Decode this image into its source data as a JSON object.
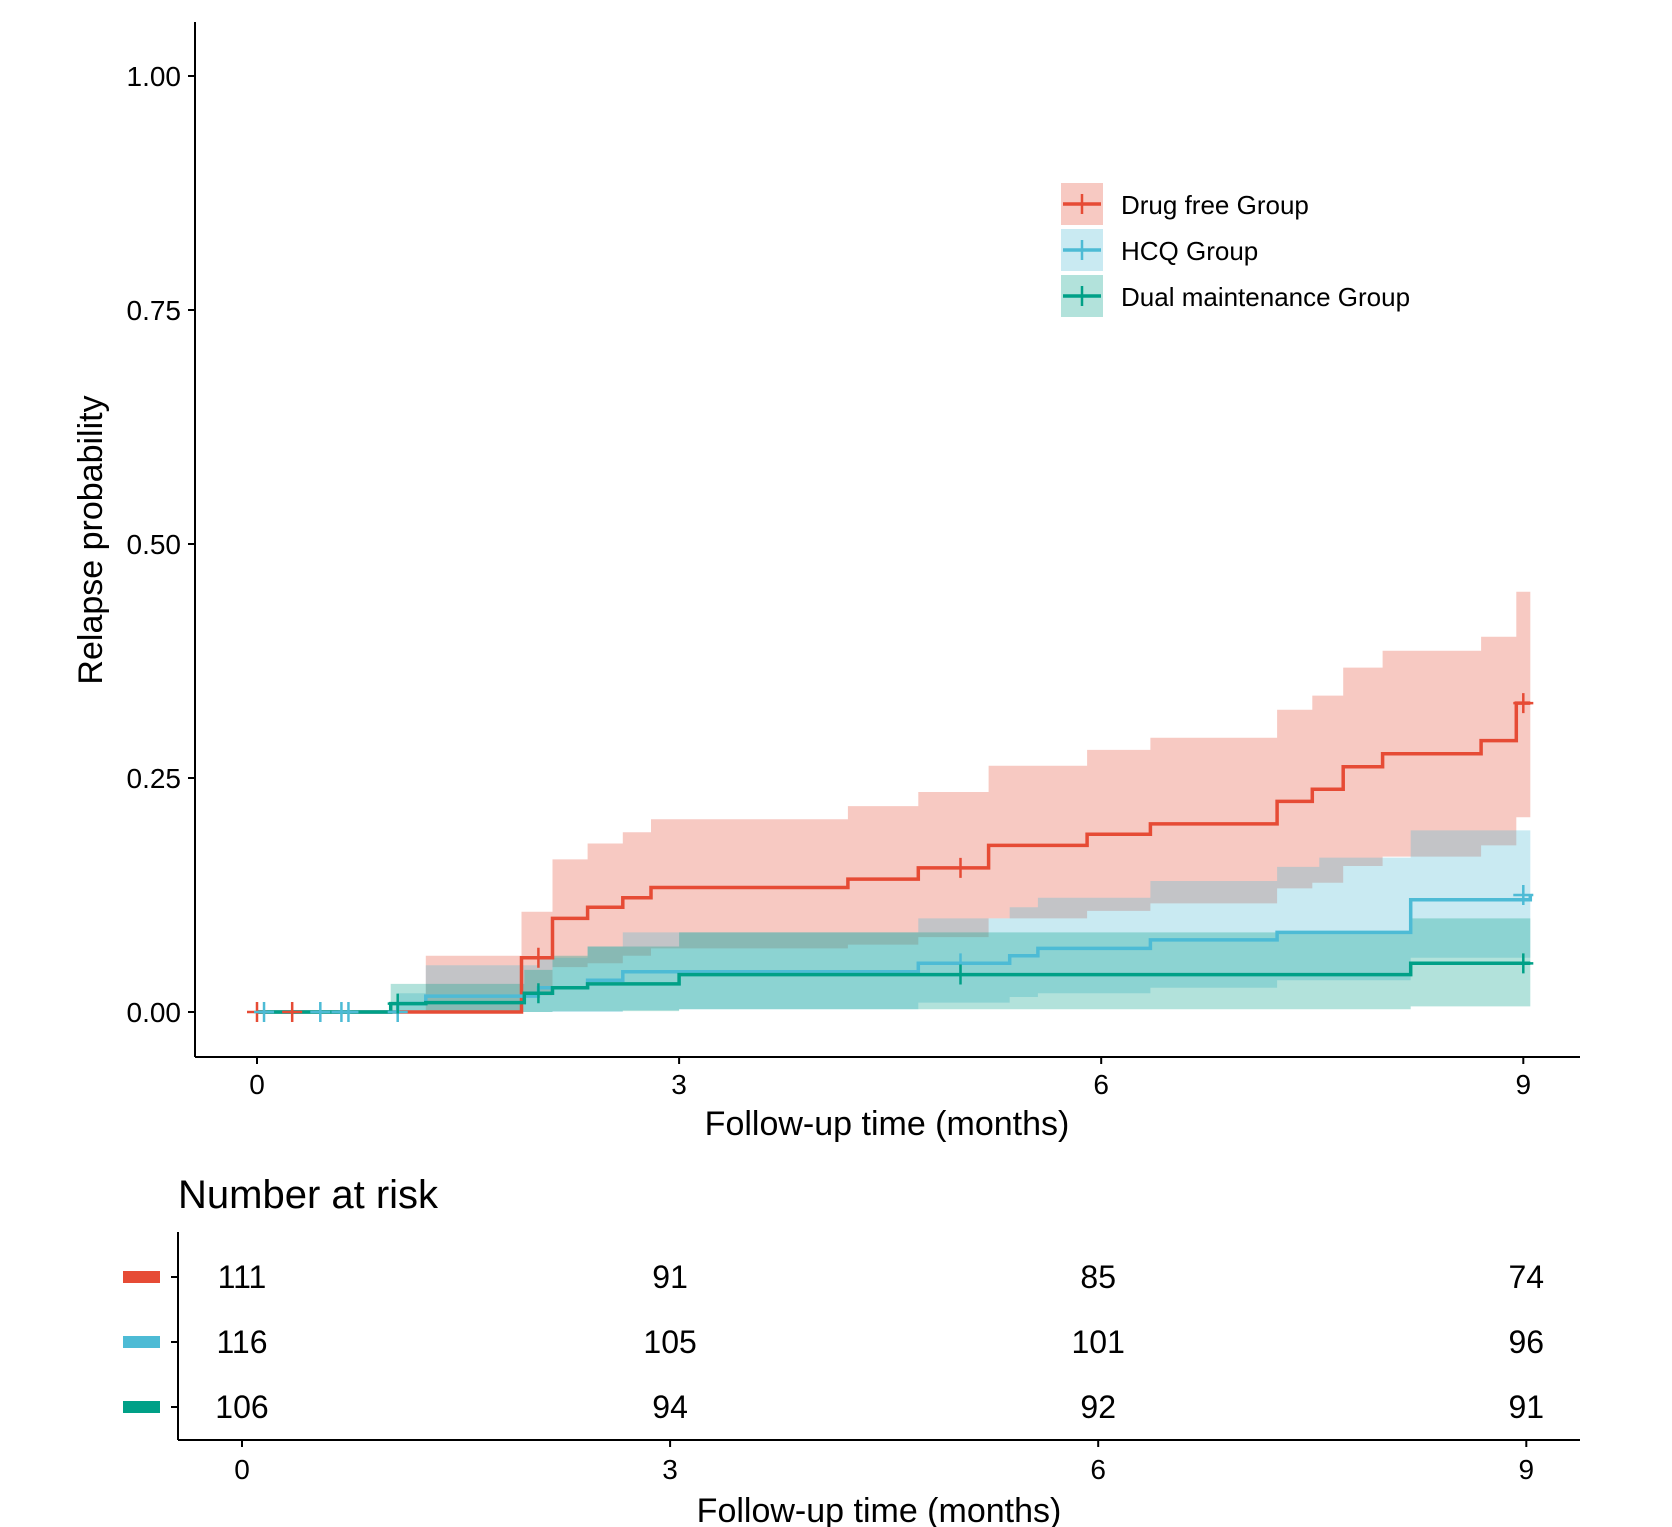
{
  "chart_data": {
    "type": "line",
    "subtype": "kaplan-meier cumulative incidence with 95% CI bands",
    "xlabel": "Follow-up time (months)",
    "ylabel": "Relapse probability",
    "xlim": [
      -0.45,
      9.45
    ],
    "ylim": [
      -0.05,
      1.05
    ],
    "x_ticks": [
      0,
      3,
      6,
      9
    ],
    "y_ticks": [
      0,
      0.25,
      0.5,
      0.75,
      1.0
    ],
    "y_tick_labels": [
      "0.00",
      "0.25",
      "0.50",
      "0.75",
      "1.00"
    ],
    "grid": false,
    "legend_position": "top-right",
    "series": [
      {
        "name": "Drug free Group",
        "color": "#E64B35",
        "steps": [
          [
            0,
            0
          ],
          [
            1.88,
            0.058
          ],
          [
            2.1,
            0.1
          ],
          [
            2.35,
            0.112
          ],
          [
            2.6,
            0.122
          ],
          [
            2.8,
            0.133
          ],
          [
            4.2,
            0.142
          ],
          [
            4.7,
            0.154
          ],
          [
            5.2,
            0.178
          ],
          [
            5.9,
            0.19
          ],
          [
            6.35,
            0.201
          ],
          [
            7.25,
            0.225
          ],
          [
            7.5,
            0.238
          ],
          [
            7.72,
            0.262
          ],
          [
            8.0,
            0.276
          ],
          [
            8.7,
            0.29
          ],
          [
            8.95,
            0.33
          ],
          [
            9.05,
            0.33
          ]
        ],
        "lower": [
          [
            0,
            0
          ],
          [
            1.2,
            0
          ],
          [
            1.88,
            0.018
          ],
          [
            2.1,
            0.048
          ],
          [
            2.35,
            0.052
          ],
          [
            2.6,
            0.06
          ],
          [
            2.8,
            0.068
          ],
          [
            4.2,
            0.072
          ],
          [
            4.7,
            0.08
          ],
          [
            5.2,
            0.1
          ],
          [
            5.9,
            0.108
          ],
          [
            6.35,
            0.116
          ],
          [
            7.25,
            0.132
          ],
          [
            7.5,
            0.138
          ],
          [
            7.72,
            0.156
          ],
          [
            8.0,
            0.166
          ],
          [
            8.7,
            0.178
          ],
          [
            8.95,
            0.208
          ],
          [
            9.05,
            0.208
          ]
        ],
        "upper": [
          [
            0,
            0
          ],
          [
            1.2,
            0.06
          ],
          [
            1.88,
            0.107
          ],
          [
            2.1,
            0.163
          ],
          [
            2.35,
            0.18
          ],
          [
            2.6,
            0.192
          ],
          [
            2.8,
            0.206
          ],
          [
            4.2,
            0.22
          ],
          [
            4.7,
            0.235
          ],
          [
            5.2,
            0.263
          ],
          [
            5.9,
            0.28
          ],
          [
            6.35,
            0.293
          ],
          [
            7.25,
            0.323
          ],
          [
            7.5,
            0.338
          ],
          [
            7.72,
            0.368
          ],
          [
            8.0,
            0.386
          ],
          [
            8.7,
            0.401
          ],
          [
            8.95,
            0.449
          ],
          [
            9.05,
            0.449
          ]
        ],
        "censored": [
          [
            0,
            0
          ],
          [
            0.25,
            0
          ],
          [
            2.0,
            0.058
          ],
          [
            5.0,
            0.154
          ],
          [
            9.0,
            0.33
          ]
        ]
      },
      {
        "name": "HCQ Group",
        "color": "#4DBBD5",
        "steps": [
          [
            0,
            0
          ],
          [
            1.0,
            0.009
          ],
          [
            1.2,
            0.017
          ],
          [
            2.0,
            0.026
          ],
          [
            2.35,
            0.034
          ],
          [
            2.6,
            0.043
          ],
          [
            3.0,
            0.043
          ],
          [
            4.7,
            0.052
          ],
          [
            5.35,
            0.06
          ],
          [
            5.55,
            0.068
          ],
          [
            6.35,
            0.077
          ],
          [
            7.25,
            0.085
          ],
          [
            8.2,
            0.12
          ],
          [
            9.05,
            0.125
          ]
        ],
        "lower": [
          [
            0,
            0
          ],
          [
            1.2,
            0
          ],
          [
            2.0,
            0
          ],
          [
            2.6,
            0.002
          ],
          [
            3.0,
            0.003
          ],
          [
            4.7,
            0.01
          ],
          [
            5.35,
            0.016
          ],
          [
            5.55,
            0.02
          ],
          [
            6.35,
            0.026
          ],
          [
            7.25,
            0.034
          ],
          [
            8.2,
            0.058
          ],
          [
            9.05,
            0.062
          ]
        ],
        "upper": [
          [
            0,
            0
          ],
          [
            1.0,
            0.02
          ],
          [
            1.2,
            0.05
          ],
          [
            2.0,
            0.058
          ],
          [
            2.35,
            0.07
          ],
          [
            2.6,
            0.085
          ],
          [
            3.0,
            0.085
          ],
          [
            4.7,
            0.1
          ],
          [
            5.35,
            0.112
          ],
          [
            5.55,
            0.122
          ],
          [
            6.35,
            0.14
          ],
          [
            7.25,
            0.155
          ],
          [
            7.55,
            0.165
          ],
          [
            8.2,
            0.194
          ],
          [
            9.05,
            0.195
          ]
        ],
        "censored": [
          [
            0.05,
            0
          ],
          [
            0.45,
            0
          ],
          [
            0.6,
            0
          ],
          [
            0.65,
            0
          ],
          [
            1.0,
            0
          ],
          [
            5.0,
            0.052
          ],
          [
            9.0,
            0.125
          ]
        ]
      },
      {
        "name": "Dual maintenance Group",
        "color": "#00A087",
        "steps": [
          [
            0,
            0
          ],
          [
            0.95,
            0.009
          ],
          [
            1.2,
            0.01
          ],
          [
            1.9,
            0.02
          ],
          [
            2.1,
            0.026
          ],
          [
            2.35,
            0.03
          ],
          [
            3.0,
            0.04
          ],
          [
            8.2,
            0.052
          ],
          [
            9.05,
            0.052
          ]
        ],
        "lower": [
          [
            0,
            0
          ],
          [
            0.95,
            0
          ],
          [
            1.2,
            0
          ],
          [
            2.1,
            0.001
          ],
          [
            3.0,
            0.003
          ],
          [
            6.2,
            0.003
          ],
          [
            8.2,
            0.006
          ],
          [
            9.05,
            0.006
          ]
        ],
        "upper": [
          [
            0,
            0
          ],
          [
            0.95,
            0.03
          ],
          [
            1.2,
            0.03
          ],
          [
            1.9,
            0.045
          ],
          [
            2.1,
            0.06
          ],
          [
            2.35,
            0.07
          ],
          [
            3.0,
            0.085
          ],
          [
            8.2,
            0.1
          ],
          [
            9.05,
            0.1
          ]
        ],
        "censored": [
          [
            1.0,
            0.009
          ],
          [
            2.0,
            0.02
          ],
          [
            5.0,
            0.04
          ],
          [
            9.0,
            0.052
          ]
        ]
      }
    ]
  },
  "risk_table": {
    "title": "Number at risk",
    "xlabel": "Follow-up time (months)",
    "x_ticks": [
      0,
      3,
      6,
      9
    ],
    "rows": [
      {
        "color": "#E64B35",
        "values": [
          "111",
          "91",
          "85",
          "74"
        ]
      },
      {
        "color": "#4DBBD5",
        "values": [
          "116",
          "105",
          "101",
          "96"
        ]
      },
      {
        "color": "#00A087",
        "values": [
          "106",
          "94",
          "92",
          "91"
        ]
      }
    ]
  }
}
